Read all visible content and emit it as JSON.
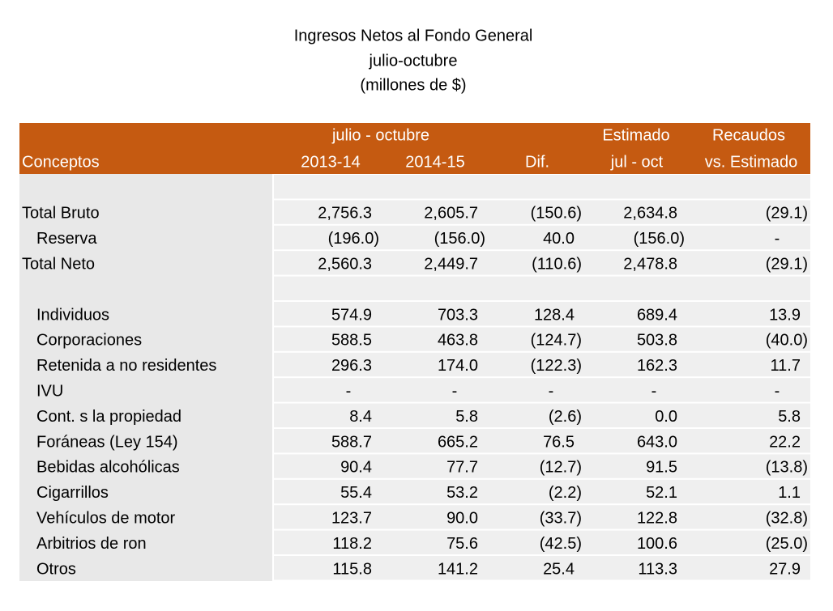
{
  "header": {
    "title": [
      "Ingresos Netos al Fondo General",
      "julio-octubre",
      "(millones de $)"
    ]
  },
  "table": {
    "group_headers": {
      "period": "julio - octubre",
      "estimate": "Estimado",
      "collections": "Recaudos"
    },
    "columns": [
      "Conceptos",
      "2013-14",
      "2014-15",
      "Dif.",
      "jul - oct",
      "vs. Estimado"
    ],
    "rows": [
      [
        "Total Bruto",
        "2,756.3",
        "2,605.7",
        "(150.6)",
        "2,634.8",
        "(29.1)"
      ],
      [
        "Reserva",
        "(196.0)",
        "(156.0)",
        "40.0",
        "(156.0)",
        "-"
      ],
      [
        "Total Neto",
        "2,560.3",
        "2,449.7",
        "(110.6)",
        "2,478.8",
        "(29.1)"
      ],
      [
        "Individuos",
        "574.9",
        "703.3",
        "128.4",
        "689.4",
        "13.9"
      ],
      [
        "Corporaciones",
        "588.5",
        "463.8",
        "(124.7)",
        "503.8",
        "(40.0)"
      ],
      [
        "Retenida a no residentes",
        "296.3",
        "174.0",
        "(122.3)",
        "162.3",
        "11.7"
      ],
      [
        "IVU",
        "-",
        "-",
        "-",
        "-",
        "-"
      ],
      [
        "Cont. s la propiedad",
        "8.4",
        "5.8",
        "(2.6)",
        "0.0",
        "5.8"
      ],
      [
        "Foráneas (Ley 154)",
        "588.7",
        "665.2",
        "76.5",
        "643.0",
        "22.2"
      ],
      [
        "Bebidas alcohólicas",
        "90.4",
        "77.7",
        "(12.7)",
        "91.5",
        "(13.8)"
      ],
      [
        "Cigarrillos",
        "55.4",
        "53.2",
        "(2.2)",
        "52.1",
        "1.1"
      ],
      [
        "Vehículos de motor",
        "123.7",
        "90.0",
        "(33.7)",
        "122.8",
        "(32.8)"
      ],
      [
        "Arbitrios de ron",
        "118.2",
        "75.6",
        "(42.5)",
        "100.6",
        "(25.0)"
      ],
      [
        "Otros",
        "115.8",
        "141.2",
        "25.4",
        "113.3",
        "27.9"
      ]
    ]
  }
}
